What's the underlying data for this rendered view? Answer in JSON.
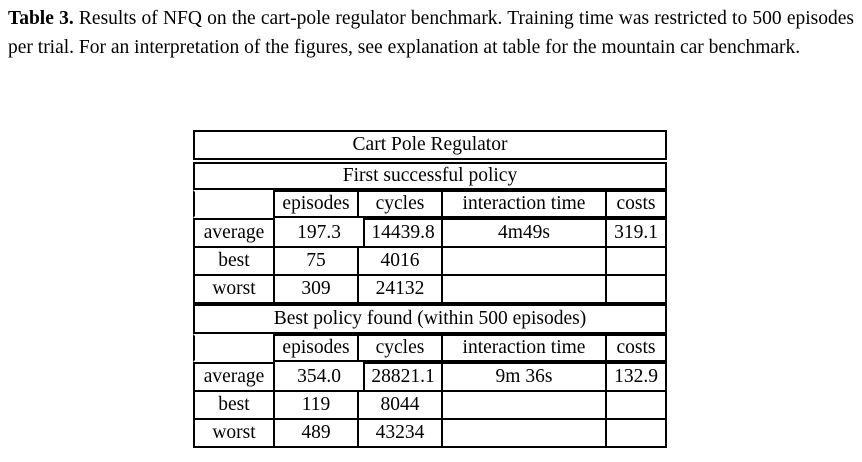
{
  "caption": {
    "lead": "Table 3.",
    "text": "Results of NFQ on the cart-pole regulator benchmark. Training time was restricted to 500 episodes per trial. For an interpretation of the figures, see explanation at table for the mountain car benchmark."
  },
  "table": {
    "title": "Cart Pole Regulator",
    "columns": [
      "episodes",
      "cycles",
      "interaction time",
      "costs"
    ],
    "sections": [
      {
        "title": "First successful policy",
        "rows": [
          {
            "label": "average",
            "episodes": "197.3",
            "cycles": "14439.8",
            "time": "4m49s",
            "costs": "319.1"
          },
          {
            "label": "best",
            "episodes": "75",
            "cycles": "4016",
            "time": "",
            "costs": ""
          },
          {
            "label": "worst",
            "episodes": "309",
            "cycles": "24132",
            "time": "",
            "costs": ""
          }
        ]
      },
      {
        "title": "Best policy found (within 500 episodes)",
        "rows": [
          {
            "label": "average",
            "episodes": "354.0",
            "cycles": "28821.1",
            "time": "9m 36s",
            "costs": "132.9"
          },
          {
            "label": "best",
            "episodes": "119",
            "cycles": "8044",
            "time": "",
            "costs": ""
          },
          {
            "label": "worst",
            "episodes": "489",
            "cycles": "43234",
            "time": "",
            "costs": ""
          }
        ]
      }
    ]
  }
}
